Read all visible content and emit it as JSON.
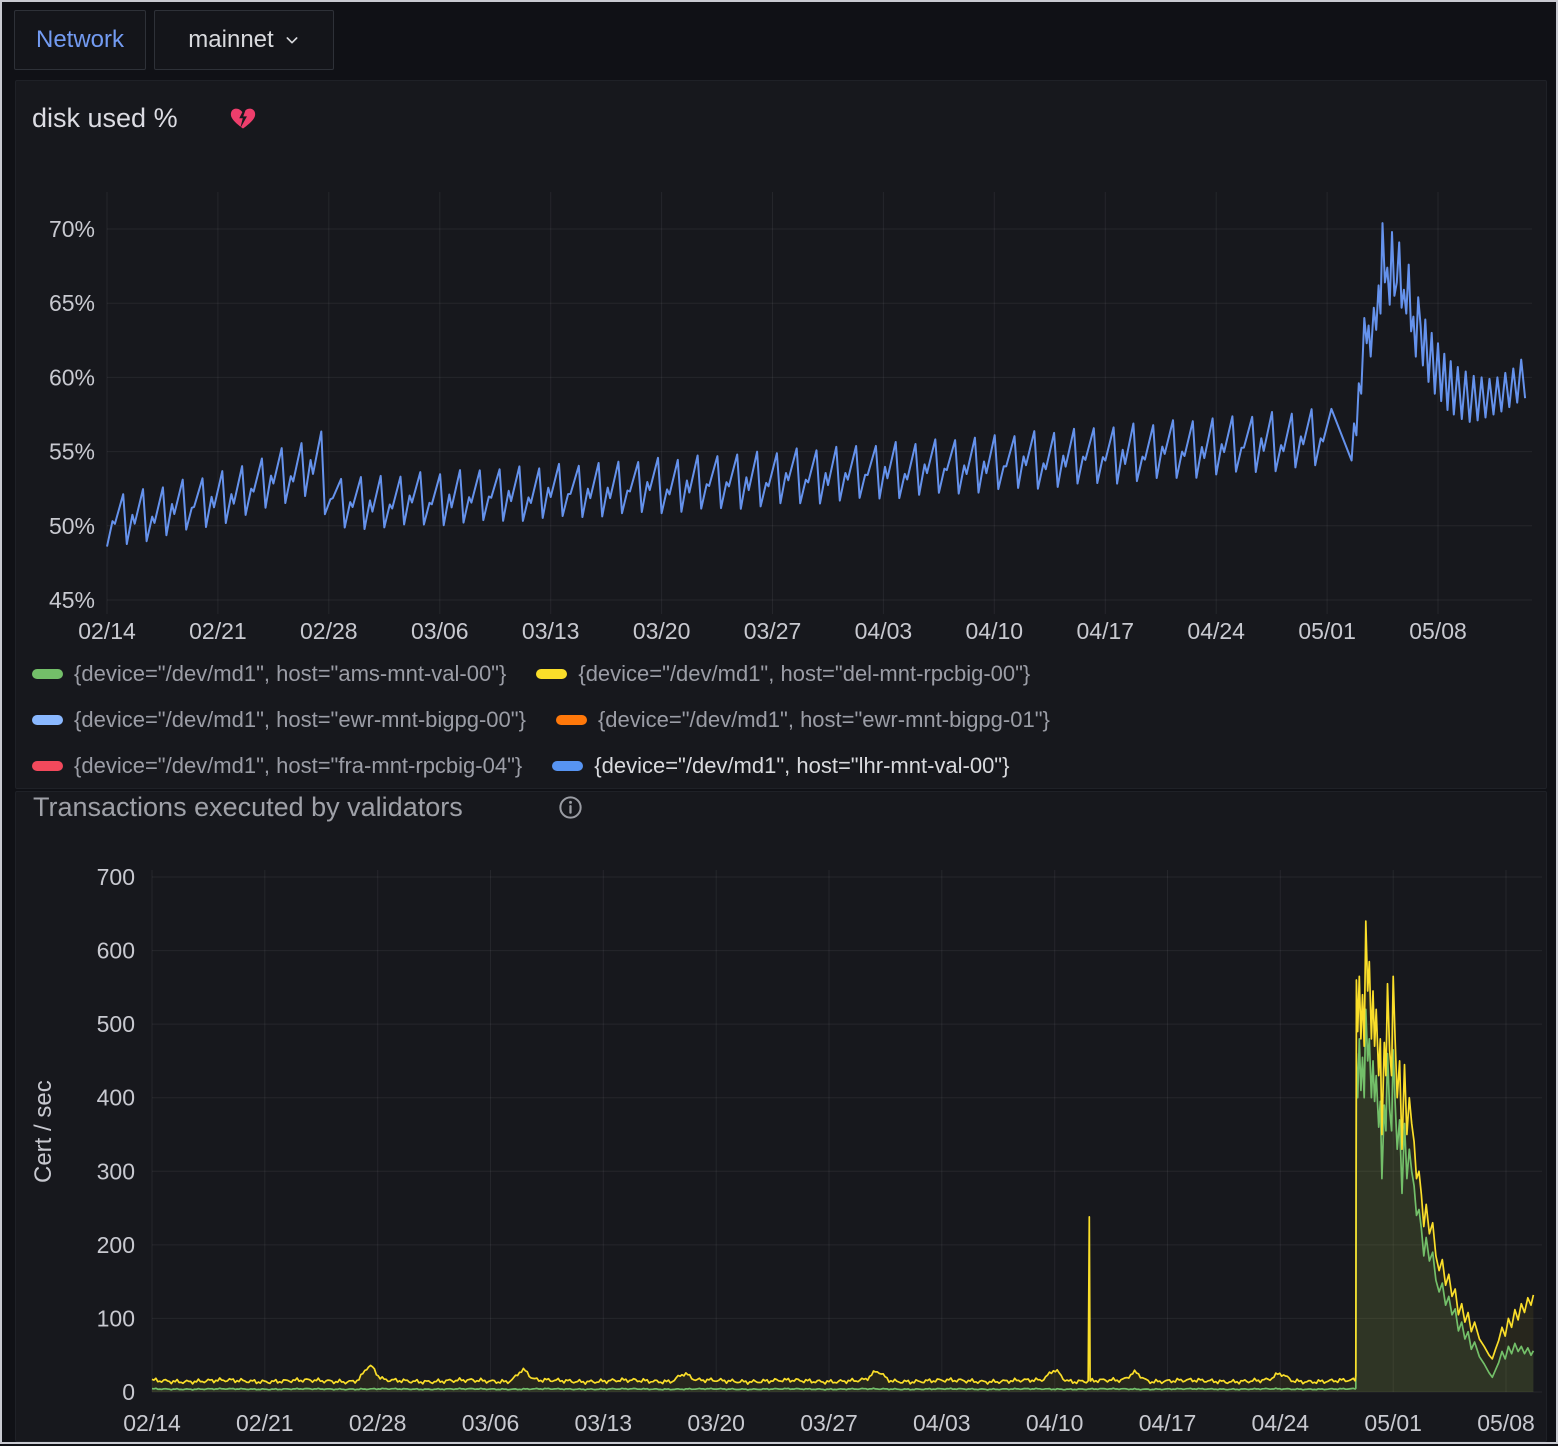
{
  "toolbar": {
    "network_label": "Network",
    "network_value": "mainnet"
  },
  "chart_data": [
    {
      "type": "line",
      "title": "disk used %",
      "alert_state": "alerting",
      "x_tick_labels": [
        "02/14",
        "02/21",
        "02/28",
        "03/06",
        "03/13",
        "03/20",
        "03/27",
        "04/03",
        "04/10",
        "04/17",
        "04/24",
        "05/01",
        "05/08"
      ],
      "x_tick_days": [
        0,
        7,
        14,
        21,
        28,
        35,
        42,
        49,
        56,
        63,
        70,
        77,
        84
      ],
      "y_ticks": [
        45,
        50,
        55,
        60,
        65,
        70
      ],
      "y_tick_suffix": "%",
      "ylim": [
        44,
        72.5
      ],
      "xlim_days": [
        0,
        89.9
      ],
      "grid": true,
      "legend_position": "bottom",
      "series": [
        {
          "label": "{device=\"/dev/md1\", host=\"ams-mnt-val-00\"}",
          "color": "#73BF69",
          "highlight": false
        },
        {
          "label": "{device=\"/dev/md1\", host=\"del-mnt-rpcbig-00\"}",
          "color": "#FADE2A",
          "highlight": false
        },
        {
          "label": "{device=\"/dev/md1\", host=\"ewr-mnt-bigpg-00\"}",
          "color": "#8AB8FF",
          "highlight": false
        },
        {
          "label": "{device=\"/dev/md1\", host=\"ewr-mnt-bigpg-01\"}",
          "color": "#FF780A",
          "highlight": false
        },
        {
          "label": "{device=\"/dev/md1\", host=\"fra-mnt-rpcbig-04\"}",
          "color": "#F2495C",
          "highlight": false
        },
        {
          "label": "{device=\"/dev/md1\", host=\"lhr-mnt-val-00\"}",
          "color": "#5794F2",
          "highlight": true
        }
      ],
      "visible_line": {
        "series": "{device=\"/dev/md1\", host=\"lhr-mnt-val-00\"}",
        "color": "#6592EC",
        "sawtooth": {
          "period_days": 1.25,
          "envelope": [
            [
              0,
              48.5,
              51.9
            ],
            [
              4,
              49.4,
              52.8
            ],
            [
              8,
              50.4,
              53.8
            ],
            [
              13.65,
              52.5,
              56.3
            ],
            [
              13.8,
              49.8,
              53.2
            ],
            [
              17,
              49.9,
              53.3
            ],
            [
              24,
              50.3,
              53.8
            ],
            [
              31,
              50.7,
              54.2
            ],
            [
              38,
              51.1,
              54.7
            ],
            [
              45,
              51.6,
              55.2
            ],
            [
              52,
              52.1,
              55.7
            ],
            [
              59,
              52.6,
              56.3
            ],
            [
              66,
              53.1,
              56.9
            ],
            [
              73,
              53.7,
              57.5
            ],
            [
              78.4,
              54.2,
              58.0
            ]
          ]
        },
        "surge_points": [
          [
            78.55,
            54.4
          ],
          [
            78.7,
            56.9
          ],
          [
            78.85,
            56.1
          ],
          [
            79.0,
            59.6
          ],
          [
            79.15,
            58.9
          ],
          [
            79.35,
            64.0
          ],
          [
            79.5,
            62.3
          ],
          [
            79.62,
            63.5
          ],
          [
            79.75,
            61.4
          ],
          [
            79.95,
            64.7
          ],
          [
            80.1,
            63.2
          ],
          [
            80.25,
            66.2
          ],
          [
            80.37,
            64.3
          ],
          [
            80.5,
            70.4
          ],
          [
            80.65,
            66.4
          ],
          [
            80.8,
            67.4
          ],
          [
            80.95,
            64.9
          ],
          [
            81.1,
            69.8
          ],
          [
            81.25,
            65.5
          ],
          [
            81.4,
            66.4
          ],
          [
            81.55,
            69.1
          ],
          [
            81.7,
            64.7
          ],
          [
            81.85,
            65.9
          ],
          [
            82.0,
            64.3
          ],
          [
            82.15,
            67.6
          ],
          [
            82.3,
            63.1
          ],
          [
            82.45,
            64.1
          ],
          [
            82.6,
            61.4
          ],
          [
            82.75,
            65.4
          ],
          [
            82.9,
            63.5
          ],
          [
            83.05,
            60.8
          ],
          [
            83.2,
            63.9
          ],
          [
            83.4,
            59.7
          ],
          [
            83.6,
            63.0
          ],
          [
            83.8,
            58.9
          ],
          [
            84.0,
            62.3
          ],
          [
            84.2,
            58.4
          ],
          [
            84.4,
            61.6
          ],
          [
            84.6,
            57.8
          ],
          [
            84.8,
            61.1
          ],
          [
            85.0,
            57.5
          ],
          [
            85.25,
            60.7
          ],
          [
            85.5,
            57.2
          ],
          [
            85.75,
            60.4
          ],
          [
            86.0,
            57.0
          ],
          [
            86.25,
            60.1
          ],
          [
            86.5,
            57.1
          ],
          [
            86.75,
            60.0
          ],
          [
            87.0,
            57.3
          ],
          [
            87.25,
            59.9
          ],
          [
            87.5,
            57.5
          ],
          [
            87.75,
            60.0
          ],
          [
            88.0,
            57.7
          ],
          [
            88.25,
            60.3
          ],
          [
            88.5,
            58.0
          ],
          [
            88.75,
            60.6
          ],
          [
            89.0,
            58.3
          ],
          [
            89.25,
            61.2
          ],
          [
            89.5,
            58.6
          ]
        ]
      }
    },
    {
      "type": "line",
      "title": "Transactions executed by validators",
      "ylabel": "Cert / sec",
      "x_tick_labels": [
        "02/14",
        "02/21",
        "02/28",
        "03/06",
        "03/13",
        "03/20",
        "03/27",
        "04/03",
        "04/10",
        "04/17",
        "04/24",
        "05/01",
        "05/08"
      ],
      "x_tick_days": [
        0,
        7,
        14,
        21,
        28,
        35,
        42,
        49,
        56,
        63,
        70,
        77,
        84
      ],
      "y_ticks": [
        0,
        100,
        200,
        300,
        400,
        500,
        600,
        700
      ],
      "ylim": [
        0,
        710
      ],
      "xlim_days": [
        0,
        86.2
      ],
      "grid": true,
      "series": [
        {
          "name": "series-green",
          "color": "#73BF69",
          "fill_opacity": 0.1,
          "baseline": {
            "mean": 4,
            "noise": 1.1,
            "end_day": 74.68,
            "bumps": []
          },
          "burst_points": [
            [
              74.68,
              5
            ],
            [
              74.72,
              460
            ],
            [
              74.8,
              400
            ],
            [
              74.9,
              480
            ],
            [
              75.0,
              410
            ],
            [
              75.1,
              455
            ],
            [
              75.2,
              400
            ],
            [
              75.3,
              520
            ],
            [
              75.42,
              450
            ],
            [
              75.52,
              480
            ],
            [
              75.65,
              400
            ],
            [
              75.75,
              450
            ],
            [
              75.85,
              395
            ],
            [
              75.95,
              430
            ],
            [
              76.1,
              360
            ],
            [
              76.2,
              395
            ],
            [
              76.3,
              290
            ],
            [
              76.45,
              390
            ],
            [
              76.55,
              355
            ],
            [
              76.65,
              460
            ],
            [
              76.78,
              385
            ],
            [
              76.9,
              355
            ],
            [
              77.0,
              465
            ],
            [
              77.12,
              395
            ],
            [
              77.25,
              330
            ],
            [
              77.4,
              370
            ],
            [
              77.55,
              270
            ],
            [
              77.7,
              365
            ],
            [
              77.85,
              290
            ],
            [
              78.0,
              330
            ],
            [
              78.15,
              300
            ],
            [
              78.3,
              280
            ],
            [
              78.45,
              240
            ],
            [
              78.6,
              248
            ],
            [
              78.75,
              222
            ],
            [
              78.9,
              185
            ],
            [
              79.05,
              210
            ],
            [
              79.25,
              178
            ],
            [
              79.45,
              190
            ],
            [
              79.65,
              152
            ],
            [
              79.85,
              136
            ],
            [
              80.05,
              148
            ],
            [
              80.25,
              118
            ],
            [
              80.45,
              130
            ],
            [
              80.65,
              105
            ],
            [
              80.85,
              113
            ],
            [
              81.05,
              83
            ],
            [
              81.25,
              95
            ],
            [
              81.45,
              72
            ],
            [
              81.65,
              82
            ],
            [
              81.85,
              58
            ],
            [
              82.05,
              68
            ],
            [
              82.35,
              48
            ],
            [
              82.65,
              38
            ],
            [
              82.95,
              26
            ],
            [
              83.15,
              20
            ],
            [
              83.35,
              30
            ],
            [
              83.55,
              40
            ],
            [
              83.75,
              55
            ],
            [
              83.95,
              45
            ],
            [
              84.15,
              62
            ],
            [
              84.35,
              52
            ],
            [
              84.55,
              66
            ],
            [
              84.75,
              55
            ],
            [
              84.95,
              62
            ],
            [
              85.15,
              52
            ],
            [
              85.35,
              60
            ],
            [
              85.55,
              50
            ],
            [
              85.7,
              56
            ]
          ]
        },
        {
          "name": "series-yellow",
          "color": "#FADE2A",
          "fill_opacity": 0.07,
          "baseline": {
            "mean": 15,
            "noise": 4,
            "end_day": 74.68,
            "bumps": [
              [
                13.5,
                20
              ],
              [
                23,
                15
              ],
              [
                33,
                10
              ],
              [
                45,
                12
              ],
              [
                56,
                15
              ],
              [
                61,
                12
              ],
              [
                70,
                9
              ]
            ],
            "spike": {
              "day": 58.15,
              "value": 238
            }
          },
          "burst_points": [
            [
              74.68,
              22
            ],
            [
              74.72,
              560
            ],
            [
              74.8,
              490
            ],
            [
              74.9,
              565
            ],
            [
              75.0,
              480
            ],
            [
              75.1,
              540
            ],
            [
              75.2,
              470
            ],
            [
              75.3,
              640
            ],
            [
              75.42,
              545
            ],
            [
              75.52,
              585
            ],
            [
              75.65,
              480
            ],
            [
              75.75,
              545
            ],
            [
              75.85,
              470
            ],
            [
              75.95,
              520
            ],
            [
              76.1,
              430
            ],
            [
              76.2,
              480
            ],
            [
              76.3,
              350
            ],
            [
              76.45,
              475
            ],
            [
              76.55,
              430
            ],
            [
              76.65,
              555
            ],
            [
              76.78,
              465
            ],
            [
              76.9,
              430
            ],
            [
              77.0,
              565
            ],
            [
              77.12,
              480
            ],
            [
              77.25,
              400
            ],
            [
              77.4,
              450
            ],
            [
              77.55,
              330
            ],
            [
              77.7,
              445
            ],
            [
              77.85,
              350
            ],
            [
              78.0,
              400
            ],
            [
              78.15,
              365
            ],
            [
              78.3,
              340
            ],
            [
              78.45,
              290
            ],
            [
              78.6,
              300
            ],
            [
              78.75,
              268
            ],
            [
              78.9,
              225
            ],
            [
              79.05,
              255
            ],
            [
              79.25,
              215
            ],
            [
              79.45,
              230
            ],
            [
              79.65,
              185
            ],
            [
              79.85,
              165
            ],
            [
              80.05,
              180
            ],
            [
              80.25,
              145
            ],
            [
              80.45,
              160
            ],
            [
              80.65,
              130
            ],
            [
              80.85,
              140
            ],
            [
              81.05,
              105
            ],
            [
              81.25,
              120
            ],
            [
              81.45,
              95
            ],
            [
              81.65,
              108
            ],
            [
              81.85,
              82
            ],
            [
              82.05,
              95
            ],
            [
              82.35,
              72
            ],
            [
              82.65,
              62
            ],
            [
              82.95,
              50
            ],
            [
              83.15,
              45
            ],
            [
              83.35,
              58
            ],
            [
              83.55,
              70
            ],
            [
              83.75,
              88
            ],
            [
              83.95,
              76
            ],
            [
              84.15,
              100
            ],
            [
              84.35,
              88
            ],
            [
              84.55,
              112
            ],
            [
              84.75,
              98
            ],
            [
              84.95,
              120
            ],
            [
              85.15,
              108
            ],
            [
              85.35,
              128
            ],
            [
              85.55,
              118
            ],
            [
              85.7,
              132
            ]
          ]
        }
      ]
    }
  ]
}
